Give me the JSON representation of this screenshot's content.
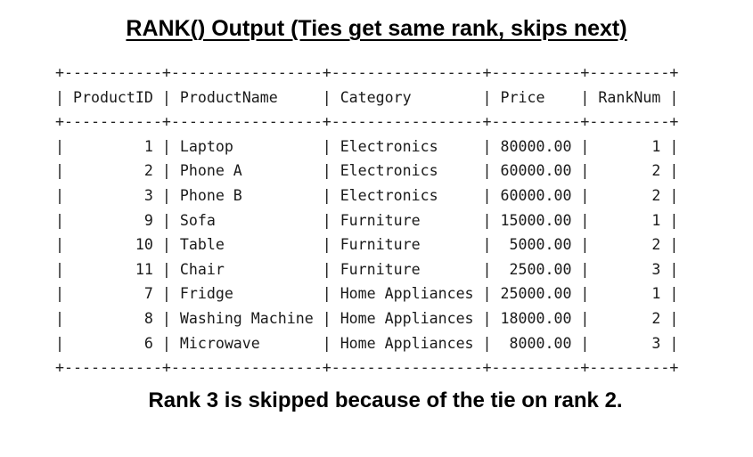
{
  "title": "RANK() Output (Ties get same rank, skips next)",
  "table": {
    "columns": [
      "ProductID",
      "ProductName",
      "Category",
      "Price",
      "RankNum"
    ],
    "rows": [
      [
        "1",
        "Laptop",
        "Electronics",
        "80000.00",
        "1"
      ],
      [
        "2",
        "Phone A",
        "Electronics",
        "60000.00",
        "2"
      ],
      [
        "3",
        "Phone B",
        "Electronics",
        "60000.00",
        "2"
      ],
      [
        "9",
        "Sofa",
        "Furniture",
        "15000.00",
        "1"
      ],
      [
        "10",
        "Table",
        "Furniture",
        "5000.00",
        "2"
      ],
      [
        "11",
        "Chair",
        "Furniture",
        "2500.00",
        "3"
      ],
      [
        "7",
        "Fridge",
        "Home Appliances",
        "25000.00",
        "1"
      ],
      [
        "8",
        "Washing Machine",
        "Home Appliances",
        "18000.00",
        "2"
      ],
      [
        "6",
        "Microwave",
        "Home Appliances",
        "8000.00",
        "3"
      ]
    ]
  },
  "footnote": "Rank 3 is skipped because of the tie on rank 2."
}
